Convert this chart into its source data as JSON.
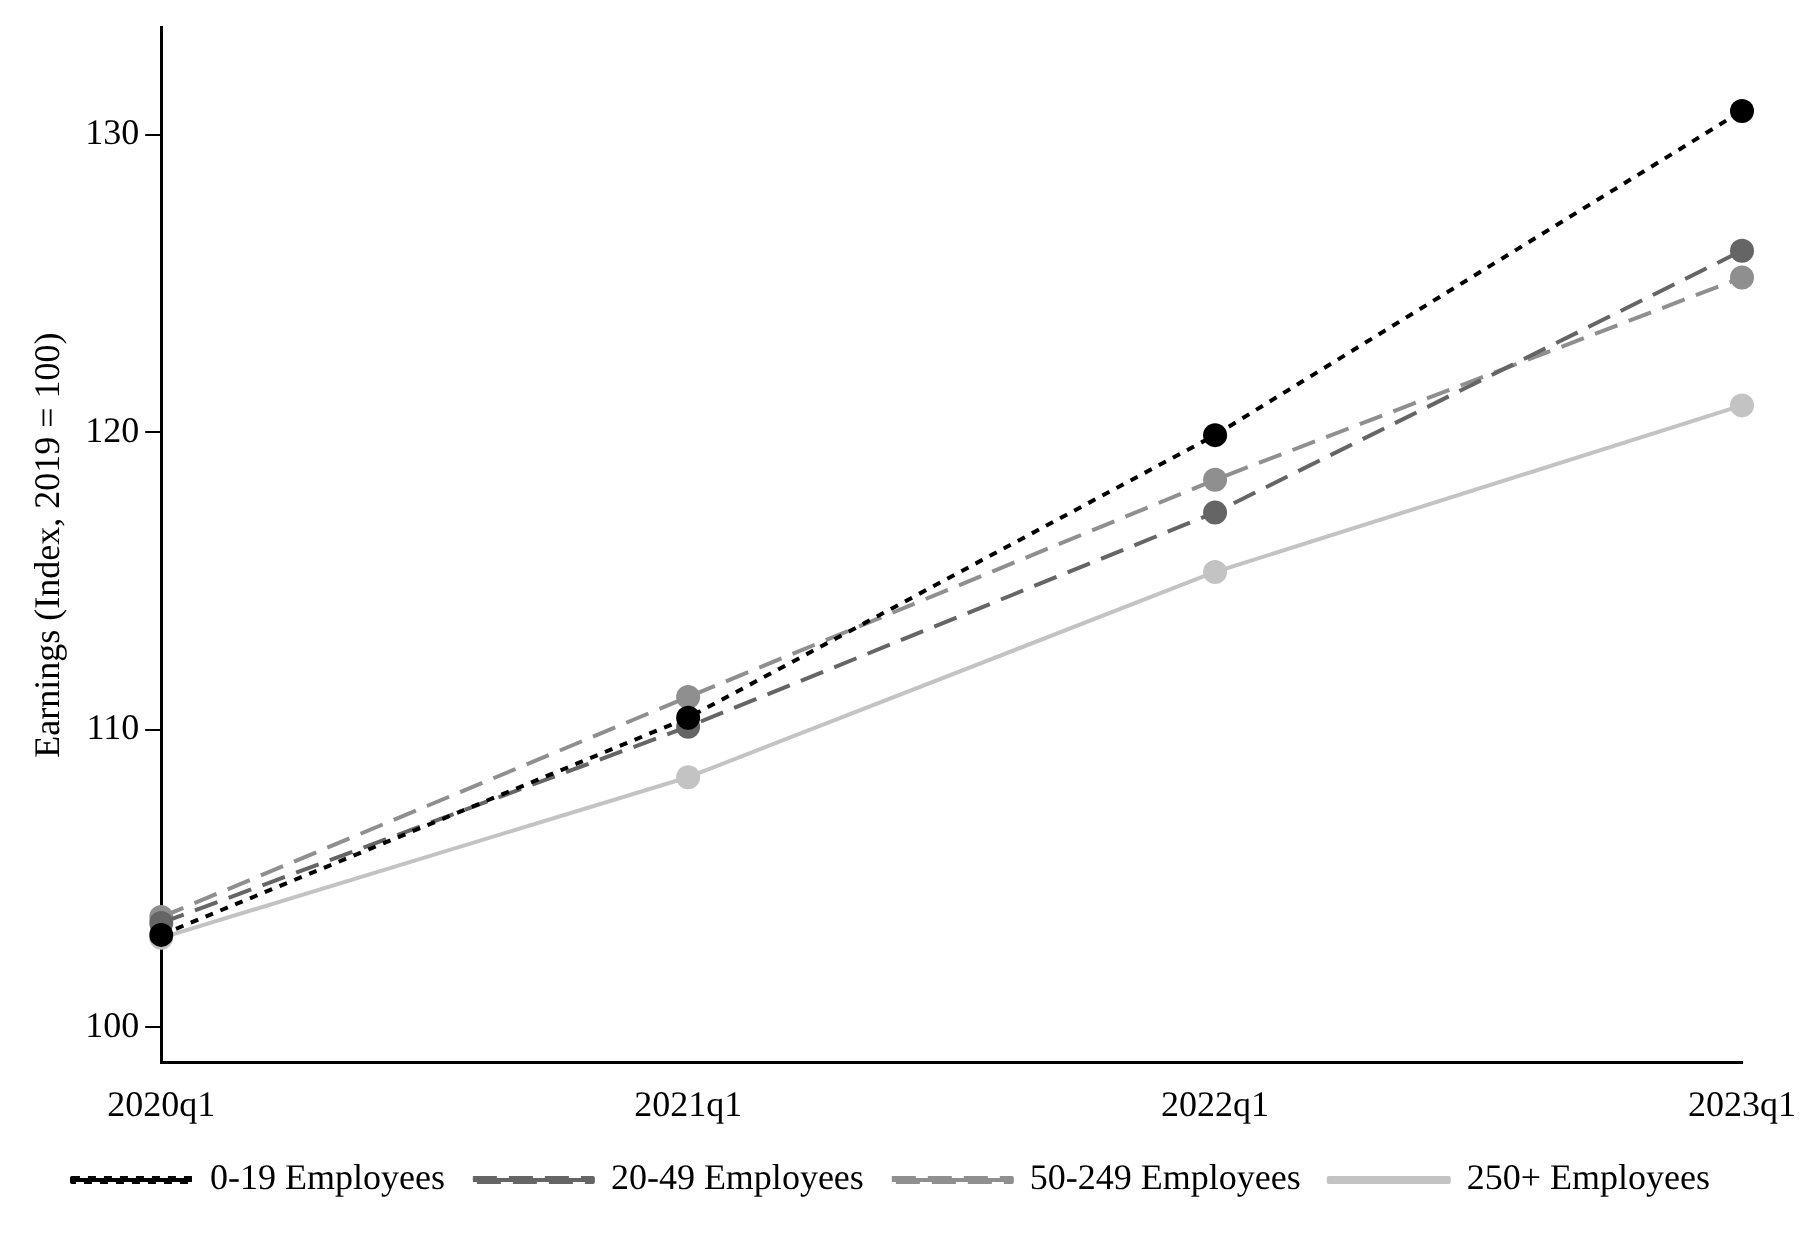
{
  "chart_data": {
    "type": "line",
    "ylabel": "Earnings (Index, 2019 = 100)",
    "categories": [
      "2020q1",
      "2021q1",
      "2022q1",
      "2023q1"
    ],
    "series": [
      {
        "name": "0-19 Employees",
        "color": "#000000",
        "line_style": "dotted",
        "values": [
          103.1,
          110.4,
          119.9,
          130.8
        ]
      },
      {
        "name": "20-49 Employees",
        "color": "#656565",
        "line_style": "dashed",
        "values": [
          103.5,
          110.1,
          117.3,
          126.1
        ]
      },
      {
        "name": "50-249 Employees",
        "color": "#8f8f8f",
        "line_style": "dashed",
        "values": [
          103.7,
          111.1,
          118.4,
          125.2
        ]
      },
      {
        "name": "250+ Employees",
        "color": "#c3c3c3",
        "line_style": "solid",
        "values": [
          103.0,
          108.4,
          115.3,
          120.9
        ]
      }
    ],
    "ylim": [
      98.8,
      133.6
    ],
    "yticks": [
      100,
      110,
      120,
      130
    ],
    "grid": false,
    "legend": "bottom",
    "marker": "circle"
  }
}
